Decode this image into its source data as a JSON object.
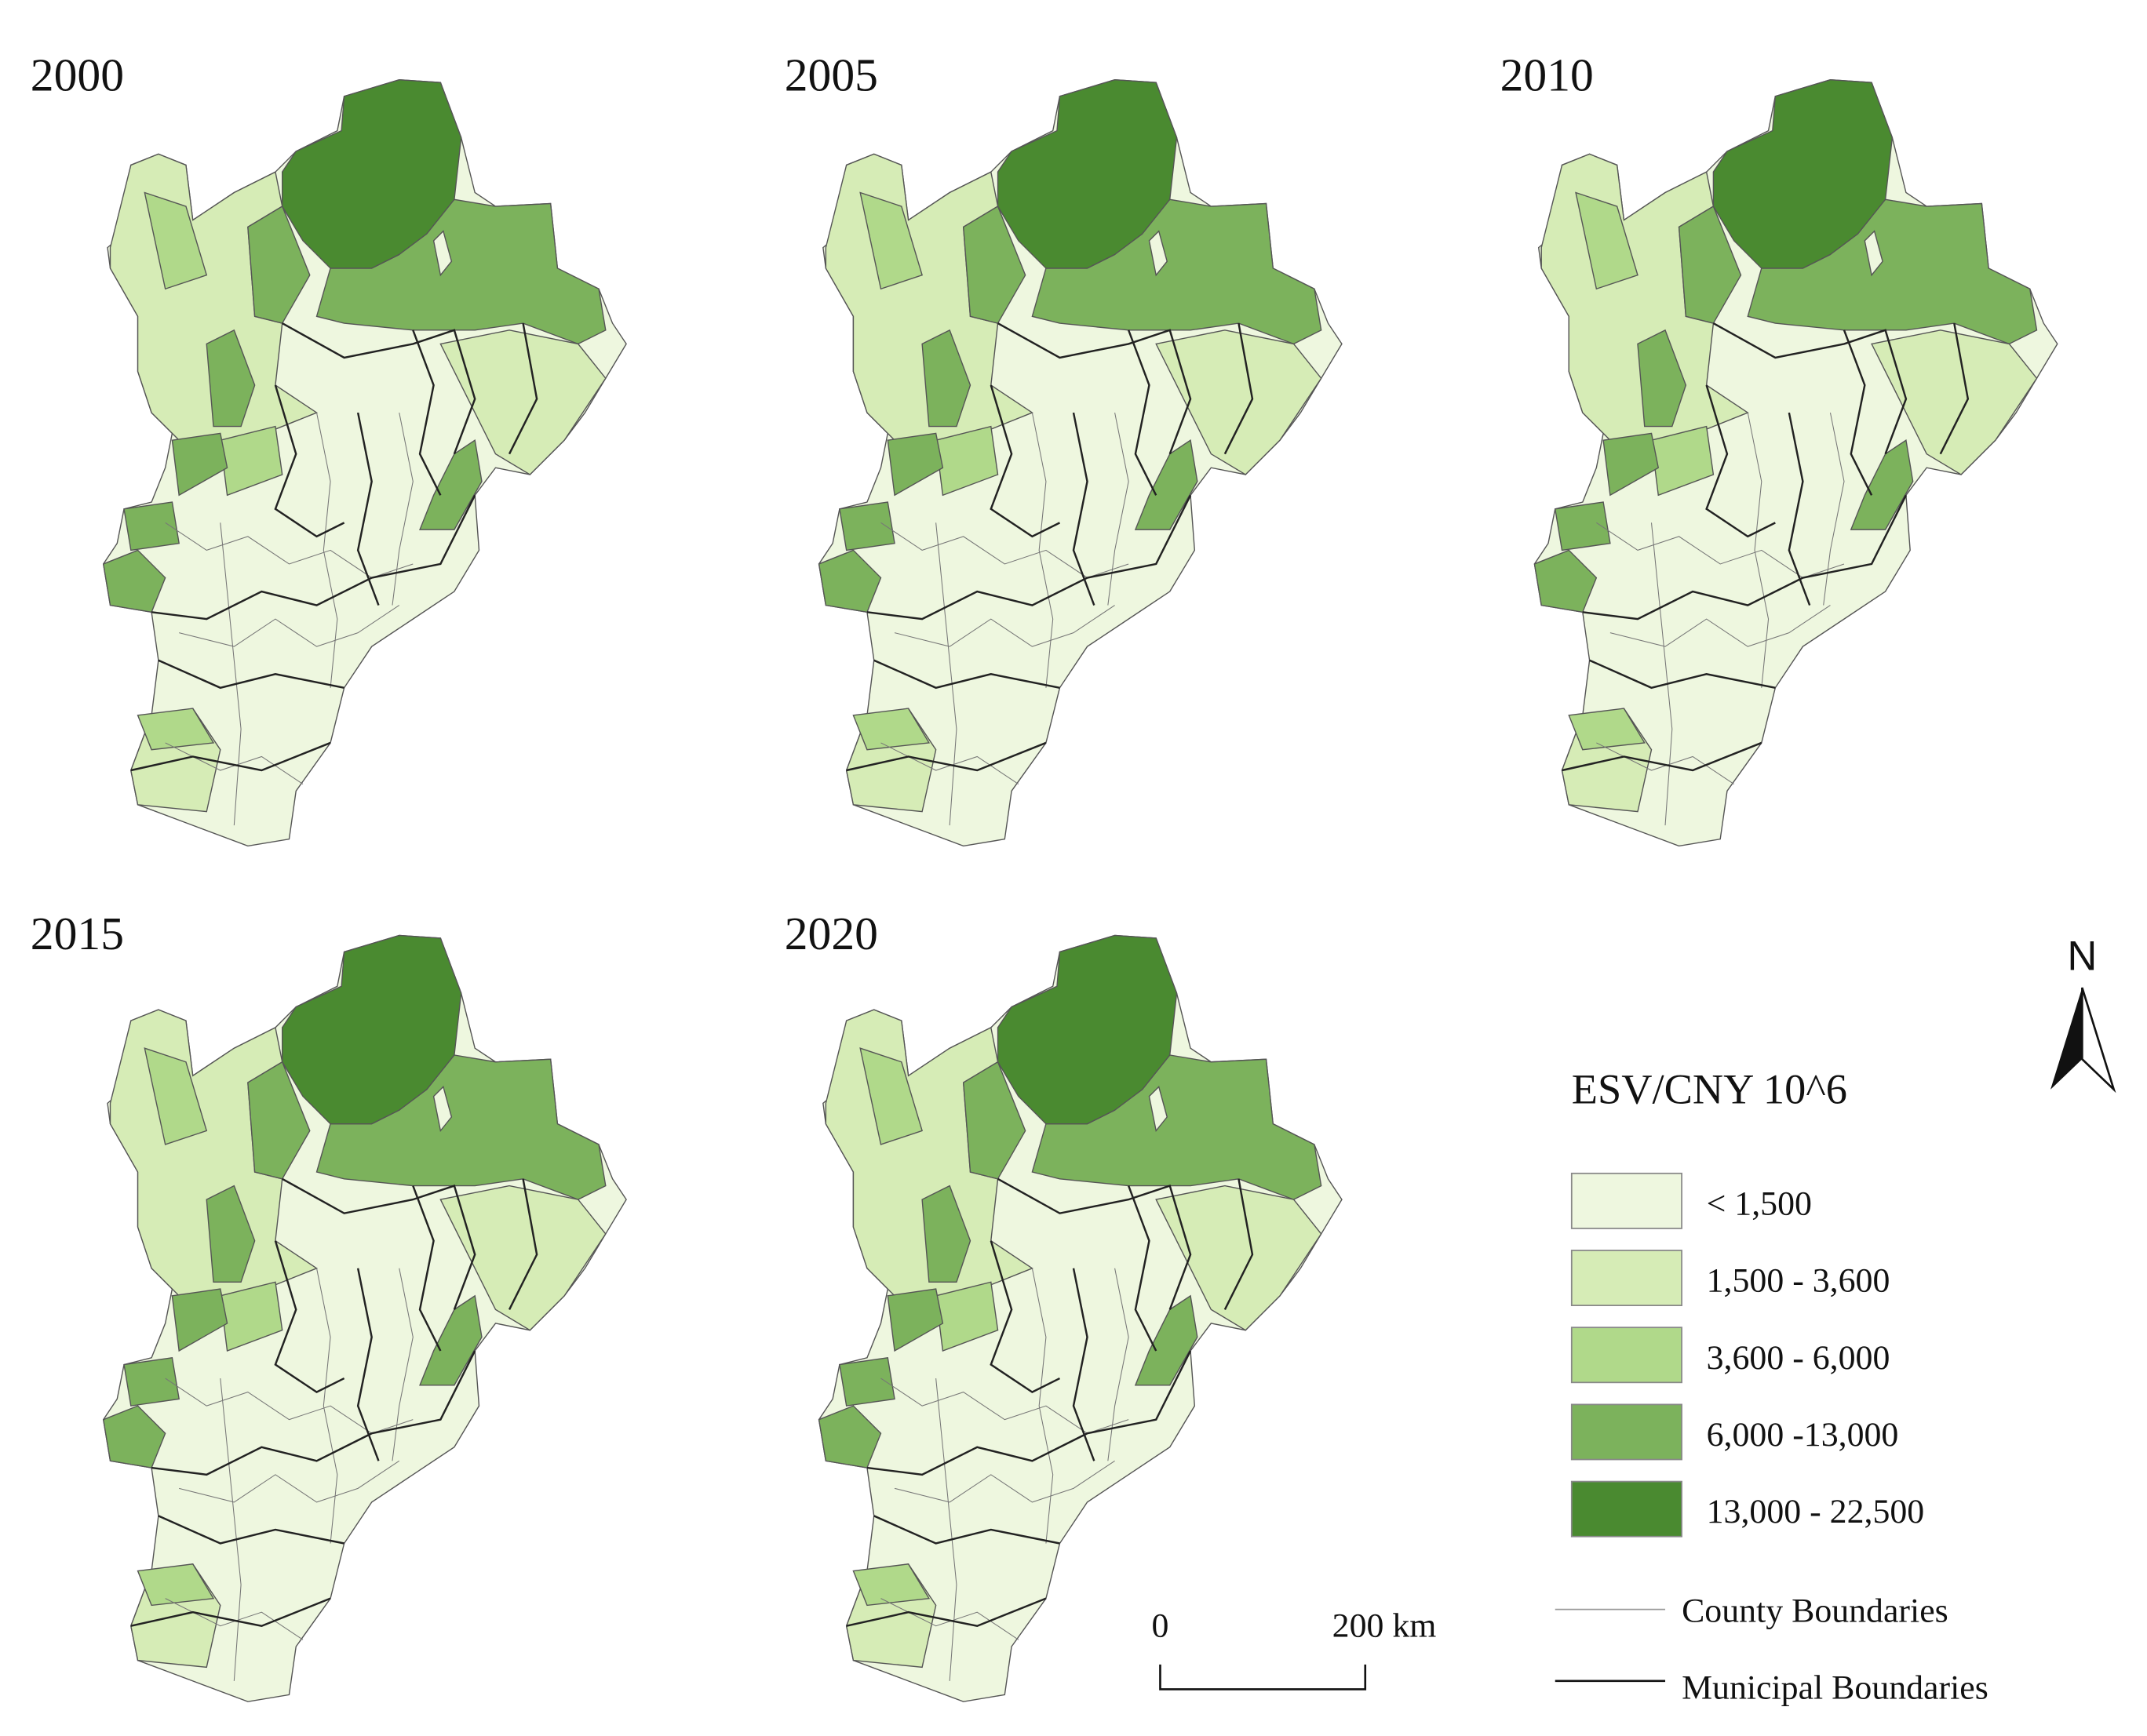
{
  "panels": [
    {
      "year": "2000"
    },
    {
      "year": "2005"
    },
    {
      "year": "2010"
    },
    {
      "year": "2015"
    },
    {
      "year": "2020"
    }
  ],
  "legend": {
    "title": "ESV/CNY 10^6",
    "classes": [
      "< 1,500",
      "1,500 - 3,600",
      "3,600 - 6,000",
      "6,000 -13,000",
      "13,000 - 22,500"
    ],
    "boundaries": [
      "County Boundaries",
      "Municipal Boundaries"
    ]
  },
  "scale_bar": {
    "labels": [
      "0",
      "200 km"
    ]
  },
  "north_arrow": {
    "label": "N"
  }
}
